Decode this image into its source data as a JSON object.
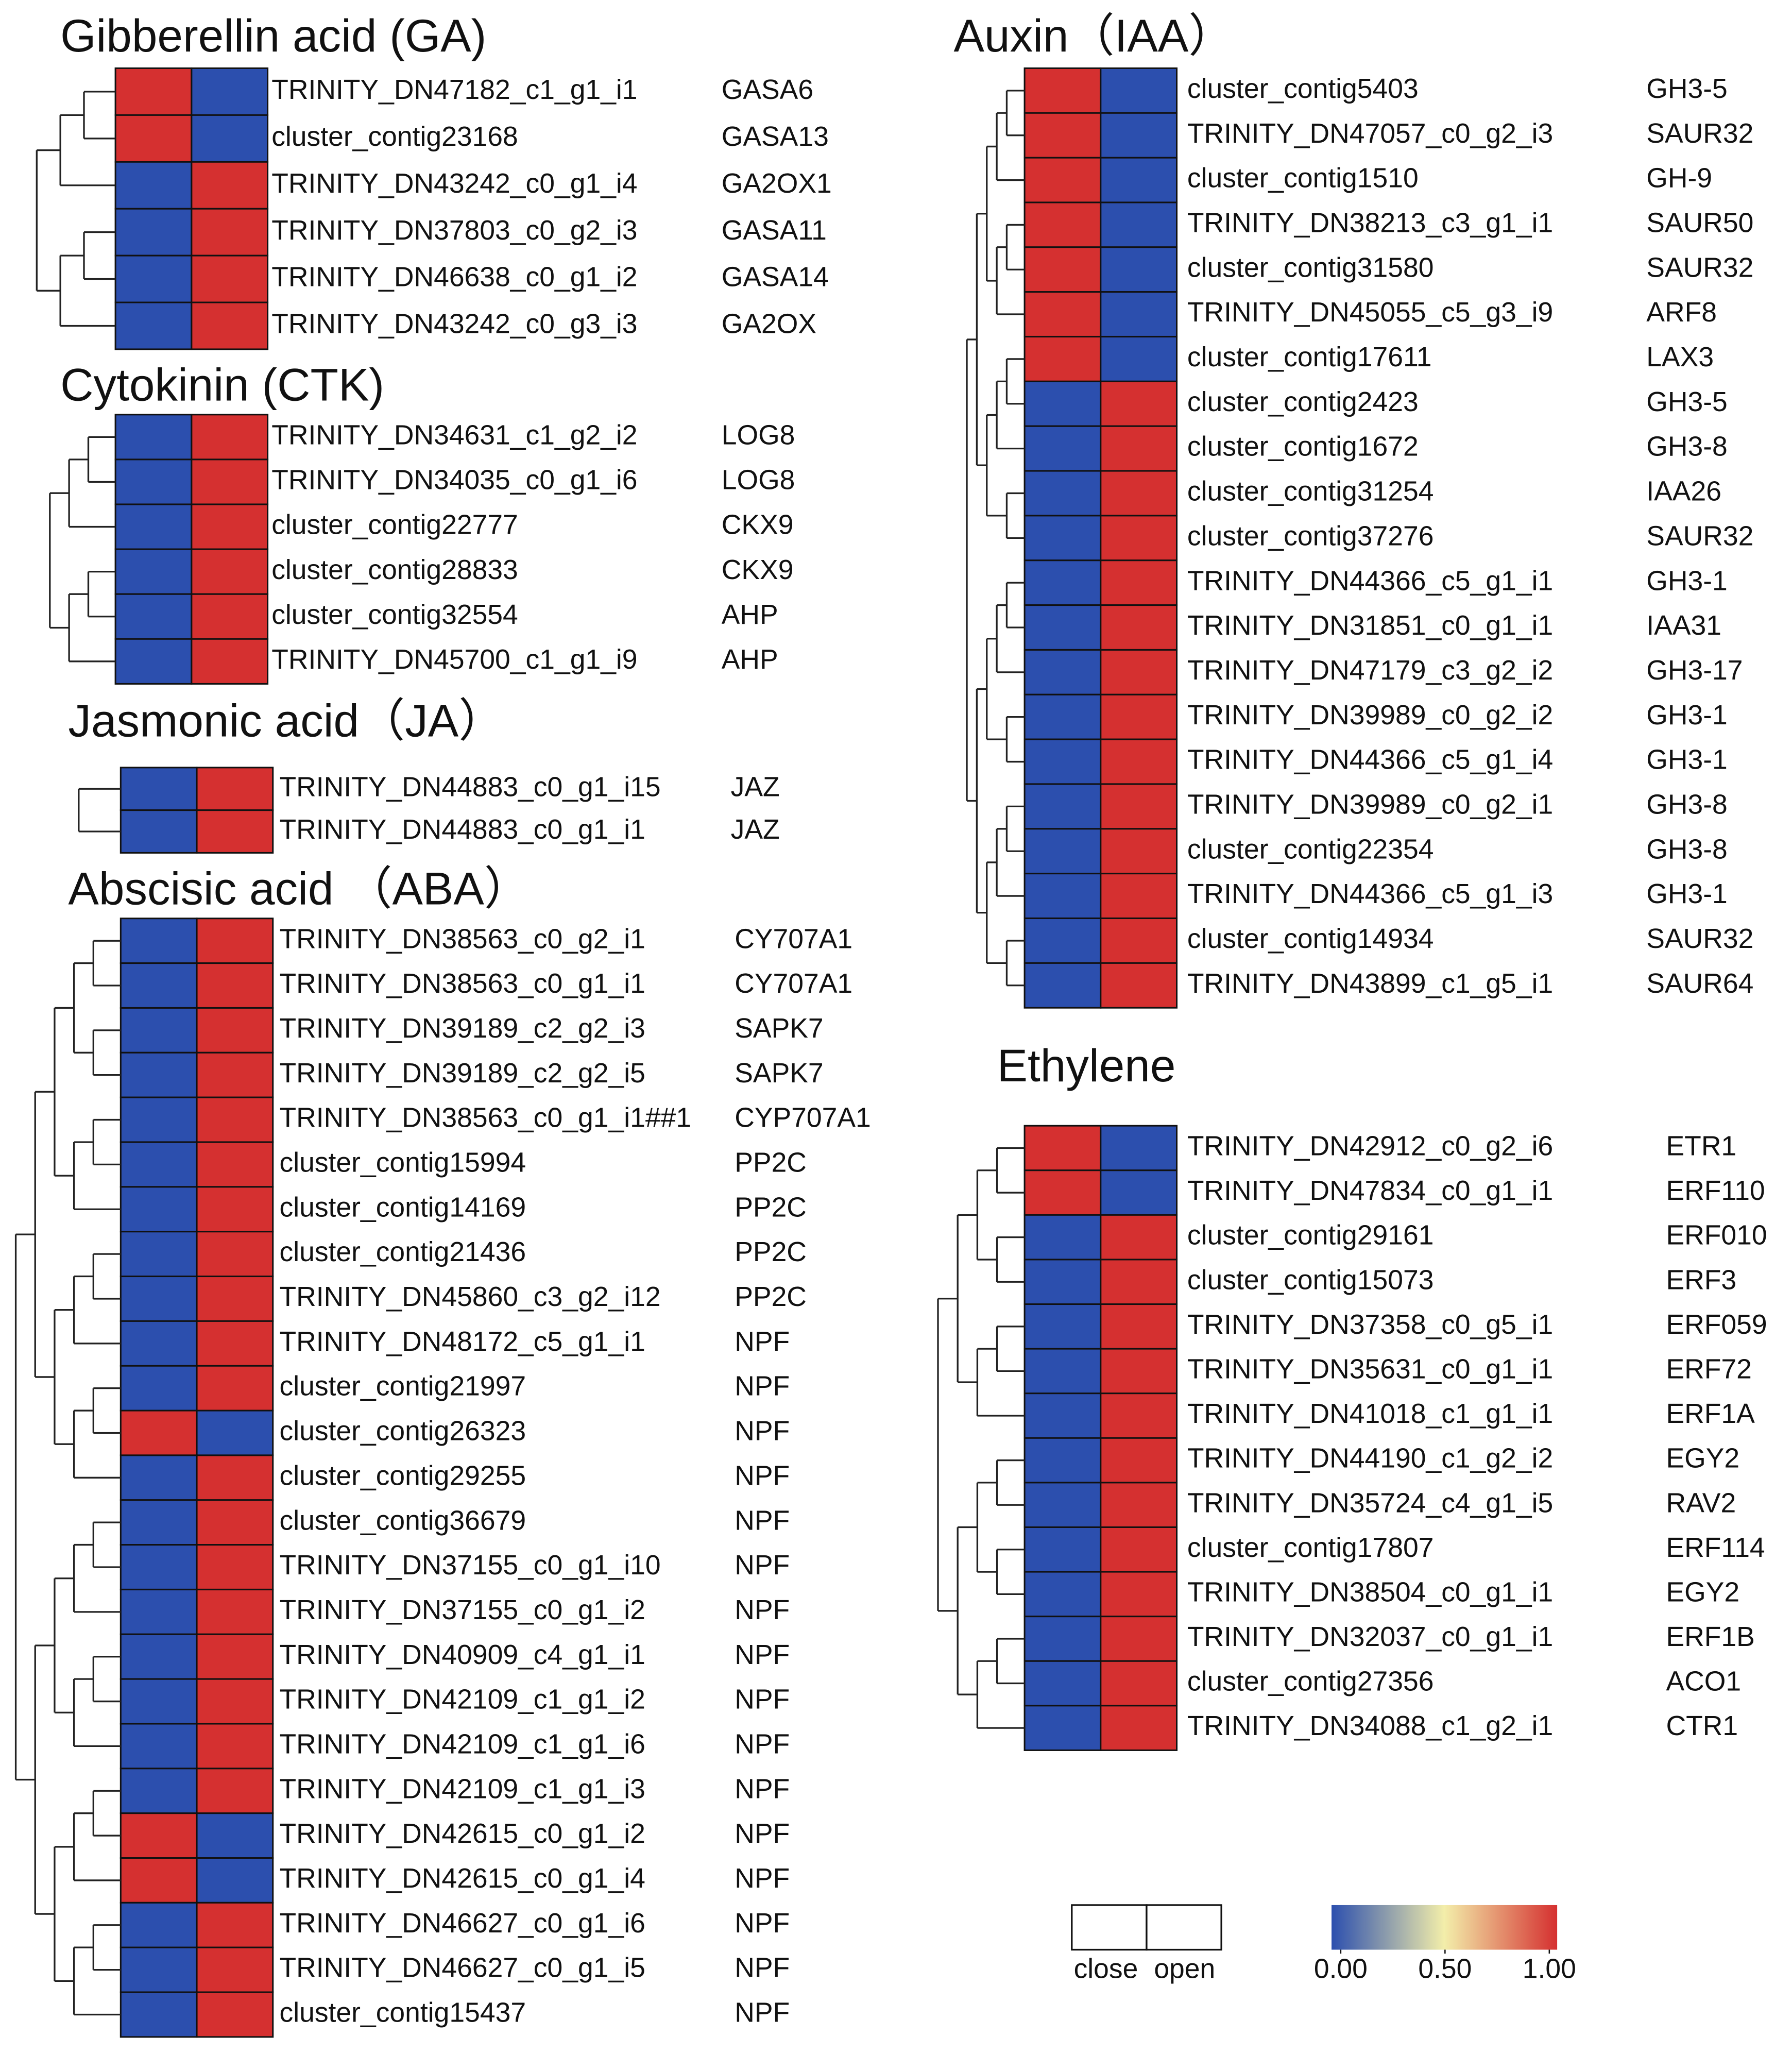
{
  "chart_data": {
    "type": "heatmap",
    "columns": [
      "close",
      "open"
    ],
    "colorscale": [
      "#2c4fae",
      "#f3eeaa",
      "#d53030"
    ],
    "clim": [
      0,
      1
    ],
    "cticks": [
      {
        "value": 0,
        "label": "0.00"
      },
      {
        "value": 0.5,
        "label": "0.50"
      },
      {
        "value": 1,
        "label": "1.00"
      }
    ],
    "panels": [
      {
        "title": "Gibberellin acid (GA)",
        "rows": [
          "TRINITY_DN47182_c1_g1_i1",
          "cluster_contig23168",
          "TRINITY_DN43242_c0_g1_i4",
          "TRINITY_DN37803_c0_g2_i3",
          "TRINITY_DN46638_c0_g1_i2",
          "TRINITY_DN43242_c0_g3_i3"
        ],
        "genes": [
          "GASA6",
          "GASA13",
          "GA2OX1",
          "GASA11",
          "GASA14",
          "GA2OX"
        ],
        "values": [
          [
            1,
            0
          ],
          [
            1,
            0
          ],
          [
            0,
            1
          ],
          [
            0,
            1
          ],
          [
            0,
            1
          ],
          [
            0,
            1
          ]
        ]
      },
      {
        "title": "Cytokinin (CTK)",
        "rows": [
          "TRINITY_DN34631_c1_g2_i2",
          "TRINITY_DN34035_c0_g1_i6",
          "cluster_contig22777",
          "cluster_contig28833",
          "cluster_contig32554",
          "TRINITY_DN45700_c1_g1_i9"
        ],
        "genes": [
          "LOG8",
          "LOG8",
          "CKX9",
          "CKX9",
          "AHP",
          "AHP"
        ],
        "values": [
          [
            0,
            1
          ],
          [
            0,
            1
          ],
          [
            0,
            1
          ],
          [
            0,
            1
          ],
          [
            0,
            1
          ],
          [
            0,
            1
          ]
        ]
      },
      {
        "title": "Jasmonic acid（JA）",
        "rows": [
          "TRINITY_DN44883_c0_g1_i15",
          "TRINITY_DN44883_c0_g1_i1"
        ],
        "genes": [
          "JAZ",
          "JAZ"
        ],
        "values": [
          [
            0,
            1
          ],
          [
            0,
            1
          ]
        ]
      },
      {
        "title": "Abscisic acid （ABA）",
        "rows": [
          "TRINITY_DN38563_c0_g2_i1",
          "TRINITY_DN38563_c0_g1_i1",
          "TRINITY_DN39189_c2_g2_i3",
          "TRINITY_DN39189_c2_g2_i5",
          "TRINITY_DN38563_c0_g1_i1##1",
          "cluster_contig15994",
          "cluster_contig14169",
          "cluster_contig21436",
          "TRINITY_DN45860_c3_g2_i12",
          "TRINITY_DN48172_c5_g1_i1",
          "cluster_contig21997",
          "cluster_contig26323",
          "cluster_contig29255",
          "cluster_contig36679",
          "TRINITY_DN37155_c0_g1_i10",
          "TRINITY_DN37155_c0_g1_i2",
          "TRINITY_DN40909_c4_g1_i1",
          "TRINITY_DN42109_c1_g1_i2",
          "TRINITY_DN42109_c1_g1_i6",
          "TRINITY_DN42109_c1_g1_i3",
          "TRINITY_DN42615_c0_g1_i2",
          "TRINITY_DN42615_c0_g1_i4",
          "TRINITY_DN46627_c0_g1_i6",
          "TRINITY_DN46627_c0_g1_i5",
          "cluster_contig15437"
        ],
        "genes": [
          "CY707A1",
          "CY707A1",
          "SAPK7",
          "SAPK7",
          "CYP707A1",
          "PP2C",
          "PP2C",
          "PP2C",
          "PP2C",
          "NPF",
          "NPF",
          "NPF",
          "NPF",
          "NPF",
          "NPF",
          "NPF",
          "NPF",
          "NPF",
          "NPF",
          "NPF",
          "NPF",
          "NPF",
          "NPF",
          "NPF",
          "NPF"
        ],
        "values": [
          [
            0,
            1
          ],
          [
            0,
            1
          ],
          [
            0,
            1
          ],
          [
            0,
            1
          ],
          [
            0,
            1
          ],
          [
            0,
            1
          ],
          [
            0,
            1
          ],
          [
            0,
            1
          ],
          [
            0,
            1
          ],
          [
            0,
            1
          ],
          [
            0,
            1
          ],
          [
            1,
            0
          ],
          [
            0,
            1
          ],
          [
            0,
            1
          ],
          [
            0,
            1
          ],
          [
            0,
            1
          ],
          [
            0,
            1
          ],
          [
            0,
            1
          ],
          [
            0,
            1
          ],
          [
            0,
            1
          ],
          [
            1,
            0
          ],
          [
            1,
            0
          ],
          [
            0,
            1
          ],
          [
            0,
            1
          ],
          [
            0,
            1
          ]
        ]
      },
      {
        "title": "Auxin（IAA）",
        "rows": [
          "cluster_contig5403",
          "TRINITY_DN47057_c0_g2_i3",
          "cluster_contig1510",
          "TRINITY_DN38213_c3_g1_i1",
          "cluster_contig31580",
          "TRINITY_DN45055_c5_g3_i9",
          "cluster_contig17611",
          "cluster_contig2423",
          "cluster_contig1672",
          "cluster_contig31254",
          "cluster_contig37276",
          "TRINITY_DN44366_c5_g1_i1",
          "TRINITY_DN31851_c0_g1_i1",
          "TRINITY_DN47179_c3_g2_i2",
          "TRINITY_DN39989_c0_g2_i2",
          "TRINITY_DN44366_c5_g1_i4",
          "TRINITY_DN39989_c0_g2_i1",
          "cluster_contig22354",
          "TRINITY_DN44366_c5_g1_i3",
          "cluster_contig14934",
          "TRINITY_DN43899_c1_g5_i1"
        ],
        "genes": [
          "GH3-5",
          "SAUR32",
          "GH-9",
          "SAUR50",
          "SAUR32",
          "ARF8",
          "LAX3",
          "GH3-5",
          "GH3-8",
          "IAA26",
          "SAUR32",
          "GH3-1",
          "IAA31",
          "GH3-17",
          "GH3-1",
          "GH3-1",
          "GH3-8",
          "GH3-8",
          "GH3-1",
          "SAUR32",
          "SAUR64"
        ],
        "values": [
          [
            1,
            0
          ],
          [
            1,
            0
          ],
          [
            1,
            0
          ],
          [
            1,
            0
          ],
          [
            1,
            0
          ],
          [
            1,
            0
          ],
          [
            1,
            0
          ],
          [
            0,
            1
          ],
          [
            0,
            1
          ],
          [
            0,
            1
          ],
          [
            0,
            1
          ],
          [
            0,
            1
          ],
          [
            0,
            1
          ],
          [
            0,
            1
          ],
          [
            0,
            1
          ],
          [
            0,
            1
          ],
          [
            0,
            1
          ],
          [
            0,
            1
          ],
          [
            0,
            1
          ],
          [
            0,
            1
          ],
          [
            0,
            1
          ]
        ]
      },
      {
        "title": "Ethylene",
        "rows": [
          "TRINITY_DN42912_c0_g2_i6",
          "TRINITY_DN47834_c0_g1_i1",
          "cluster_contig29161",
          "cluster_contig15073",
          "TRINITY_DN37358_c0_g5_i1",
          "TRINITY_DN35631_c0_g1_i1",
          "TRINITY_DN41018_c1_g1_i1",
          "TRINITY_DN44190_c1_g2_i2",
          "TRINITY_DN35724_c4_g1_i5",
          "cluster_contig17807",
          "TRINITY_DN38504_c0_g1_i1",
          "TRINITY_DN32037_c0_g1_i1",
          "cluster_contig27356",
          "TRINITY_DN34088_c1_g2_i1"
        ],
        "genes": [
          "ETR1",
          "ERF110",
          "ERF010",
          "ERF3",
          "ERF059",
          "ERF72",
          "ERF1A",
          "EGY2",
          "RAV2",
          "ERF114",
          "EGY2",
          "ERF1B",
          "ACO1",
          "CTR1"
        ],
        "values": [
          [
            1,
            0
          ],
          [
            1,
            0
          ],
          [
            0,
            1
          ],
          [
            0,
            1
          ],
          [
            0,
            1
          ],
          [
            0,
            1
          ],
          [
            0,
            1
          ],
          [
            0,
            1
          ],
          [
            0,
            1
          ],
          [
            0,
            1
          ],
          [
            0,
            1
          ],
          [
            0,
            1
          ],
          [
            0,
            1
          ],
          [
            0,
            1
          ]
        ]
      }
    ]
  }
}
